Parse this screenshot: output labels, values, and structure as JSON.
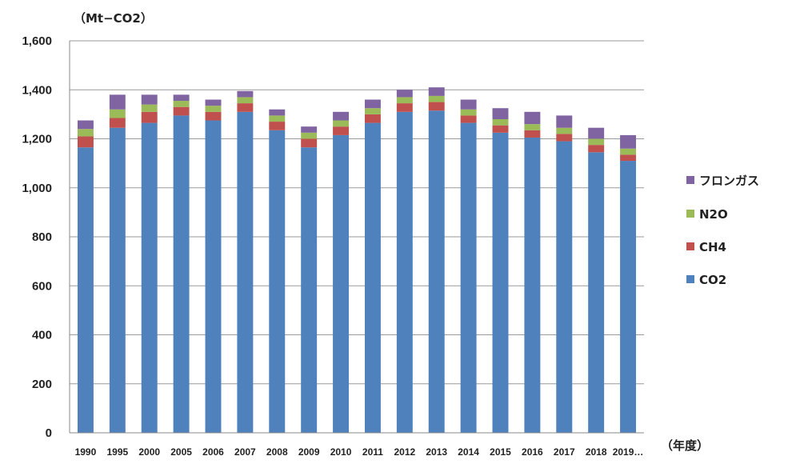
{
  "chart_data": {
    "type": "bar",
    "stacked": true,
    "unit_label": "（Mt−CO2）",
    "xlabel": "（年度）",
    "ylim": [
      0,
      1600
    ],
    "ytick_step": 200,
    "grid": true,
    "legend_position": "right",
    "categories": [
      "1990",
      "1995",
      "2000",
      "2005",
      "2006",
      "2007",
      "2008",
      "2009",
      "2010",
      "2011",
      "2012",
      "2013",
      "2014",
      "2015",
      "2016",
      "2017",
      "2018",
      "2019…"
    ],
    "series": [
      {
        "name": "CO2",
        "color": "#4f81bd",
        "values": [
          1165,
          1245,
          1265,
          1295,
          1275,
          1310,
          1235,
          1165,
          1215,
          1265,
          1310,
          1315,
          1265,
          1225,
          1205,
          1190,
          1145,
          1110
        ]
      },
      {
        "name": "CH4",
        "color": "#c0504d",
        "values": [
          45,
          40,
          45,
          35,
          35,
          35,
          35,
          35,
          35,
          35,
          35,
          35,
          30,
          30,
          30,
          30,
          30,
          25
        ]
      },
      {
        "name": "N2O",
        "color": "#9bbb59",
        "values": [
          30,
          35,
          30,
          25,
          25,
          25,
          25,
          25,
          25,
          25,
          25,
          25,
          25,
          25,
          25,
          25,
          25,
          25
        ]
      },
      {
        "name": "フロンガス",
        "color": "#8064a2",
        "values": [
          35,
          60,
          40,
          25,
          25,
          25,
          25,
          25,
          35,
          35,
          30,
          35,
          40,
          45,
          50,
          50,
          45,
          55
        ]
      }
    ],
    "legend_order": [
      "フロンガス",
      "N2O",
      "CH4",
      "CO2"
    ]
  }
}
